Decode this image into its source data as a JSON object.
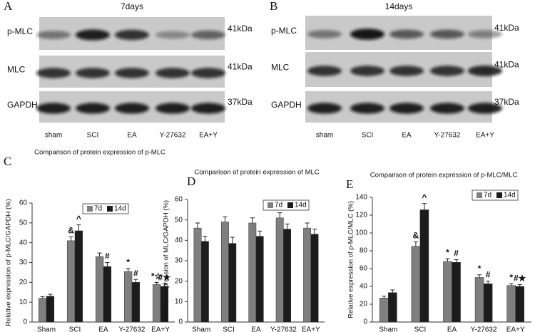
{
  "blots": [
    {
      "panel": "A",
      "title": "7days",
      "rows": [
        {
          "label": "p-MLC",
          "size": "41kDa"
        },
        {
          "label": "MLC",
          "size": "41kDa"
        },
        {
          "label": "GAPDH",
          "size": "37kDa"
        }
      ],
      "lanes": [
        "sham",
        "SCI",
        "EA",
        "Y-27632",
        "EA+Y"
      ]
    },
    {
      "panel": "B",
      "title": "14days",
      "rows": [
        {
          "label": "p-MLC",
          "size": "41kDa"
        },
        {
          "label": "MLC",
          "size": "41kDa"
        },
        {
          "label": "GAPDH",
          "size": "37kDa"
        }
      ],
      "lanes": [
        "sham",
        "SCI",
        "EA",
        "Y-27632",
        "EA+Y"
      ]
    }
  ],
  "chart_data": [
    {
      "panel": "C",
      "type": "bar",
      "title": "Comparison of protein expression of p-MLC",
      "y_label": "Relative expression of p-MLC/GAPDH (%)",
      "categories": [
        "Sham",
        "SCI",
        "EA",
        "Y-27632",
        "EA+Y"
      ],
      "series": [
        {
          "name": "7d",
          "color": "#7f7f7f",
          "values": [
            12,
            41,
            33,
            25.5,
            19
          ],
          "errors": [
            0.8,
            2,
            1.8,
            1.5,
            1
          ],
          "annotations": [
            null,
            "&",
            null,
            "*",
            "*☆"
          ]
        },
        {
          "name": "14d",
          "color": "#1c1c1c",
          "values": [
            13,
            46,
            28,
            20,
            18
          ],
          "errors": [
            1,
            3,
            2,
            1.5,
            1.2
          ],
          "annotations": [
            null,
            "^",
            "#",
            "#",
            "#★"
          ]
        }
      ],
      "ylim": [
        0,
        60
      ],
      "yticks": [
        0,
        10,
        20,
        30,
        40,
        50,
        60
      ],
      "legend": "top"
    },
    {
      "panel": "D",
      "type": "bar",
      "title": "Comparison of protein expression of MLC",
      "y_label": "Relative expression of MLC/GAPDH (%)",
      "categories": [
        "Sham",
        "SCI",
        "EA",
        "Y-27632",
        "EA+Y"
      ],
      "series": [
        {
          "name": "7d",
          "color": "#7f7f7f",
          "values": [
            46,
            49,
            48.5,
            51,
            46
          ],
          "errors": [
            2.5,
            2.5,
            2.5,
            2.5,
            2.5
          ]
        },
        {
          "name": "14d",
          "color": "#1c1c1c",
          "values": [
            39.5,
            38.5,
            42,
            45.5,
            43
          ],
          "errors": [
            2.5,
            3,
            2.5,
            2.5,
            2.5
          ]
        }
      ],
      "ylim": [
        0,
        60
      ],
      "yticks": [
        0,
        10,
        20,
        30,
        40,
        50,
        60
      ],
      "legend": "top"
    },
    {
      "panel": "E",
      "type": "bar",
      "title": "Comparison of protein expression of p-MLC/MLC",
      "y_label": "Relative expression of p-MLC/MLC (%)",
      "categories": [
        "Sham",
        "SCI",
        "EA",
        "Y-27632",
        "EA+Y"
      ],
      "series": [
        {
          "name": "7d",
          "color": "#7f7f7f",
          "values": [
            27,
            85,
            68,
            50,
            41
          ],
          "errors": [
            2,
            5,
            3,
            3,
            2
          ],
          "annotations": [
            null,
            "&",
            "*",
            "*",
            "*"
          ]
        },
        {
          "name": "14d",
          "color": "#1c1c1c",
          "values": [
            33,
            126,
            67,
            43,
            40
          ],
          "errors": [
            3,
            7,
            3,
            3,
            2
          ],
          "annotations": [
            null,
            "^",
            "#",
            "#",
            "#★"
          ]
        }
      ],
      "ylim": [
        0,
        140
      ],
      "yticks": [
        0,
        20,
        40,
        60,
        80,
        100,
        120,
        140
      ],
      "legend": "top"
    }
  ]
}
